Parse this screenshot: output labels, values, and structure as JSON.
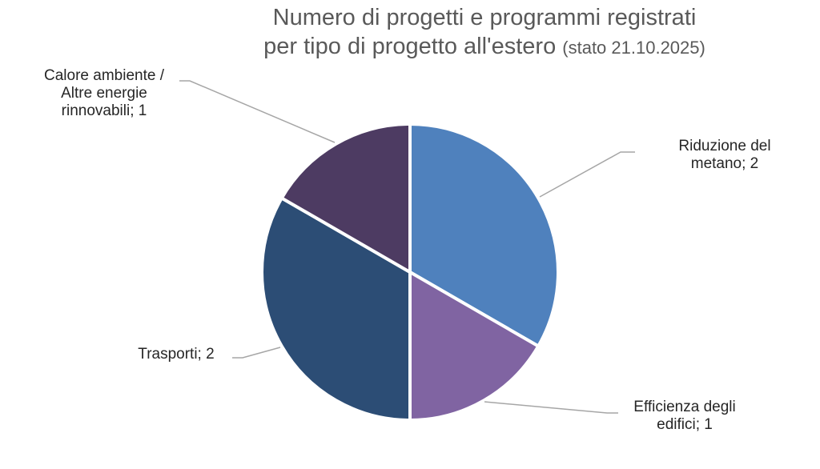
{
  "chart_data": {
    "type": "pie",
    "title": "Numero di progetti e programmi registrati per tipo di progetto all'estero (stato 21.10.2025)",
    "title_line1": "Numero di progetti e programmi registrati",
    "title_line2_main": "per tipo di progetto all'estero",
    "title_line2_small": "(stato 21.10.2025)",
    "categories": [
      "Riduzione del metano",
      "Efficienza degli edifici",
      "Trasporti",
      "Calore ambiente / Altre energie rinnovabili"
    ],
    "values": [
      2,
      1,
      2,
      1
    ],
    "colors": [
      "#4f81bd",
      "#8064a2",
      "#2c4d75",
      "#4d3b62"
    ],
    "labels": [
      {
        "line1": "Riduzione del",
        "line2": "metano; 2"
      },
      {
        "line1": "Efficienza degli",
        "line2": "edifici; 1"
      },
      {
        "line1": "Trasporti; 2"
      },
      {
        "line1": "Calore ambiente /",
        "line2": "Altre energie",
        "line3": "rinnovabili; 1"
      }
    ],
    "start_angle": "12 o'clock, clockwise",
    "legend": "none (data labels with leader lines)"
  }
}
